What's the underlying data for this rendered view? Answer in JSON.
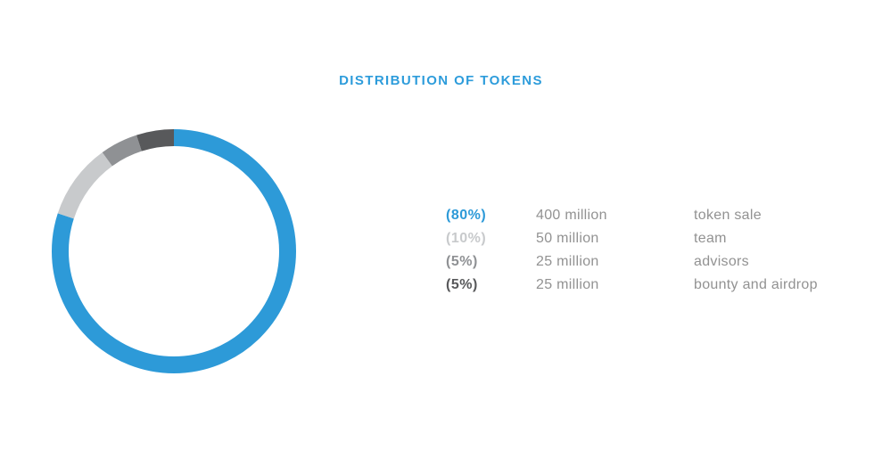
{
  "header": {
    "title": "DISTRIBUTION OF TOKENS",
    "title_color": "#2D9CDB"
  },
  "chart_data": {
    "type": "pie",
    "variant": "donut",
    "title": "DISTRIBUTION OF TOKENS",
    "start_angle_deg": 0,
    "direction": "clockwise",
    "legend_position": "right",
    "background_color": "#ffffff",
    "segments": [
      {
        "label": "token sale",
        "percent": 80,
        "percent_label": "(80%)",
        "amount": "400 million",
        "color": "#2D9AD8"
      },
      {
        "label": "team",
        "percent": 10,
        "percent_label": "(10%)",
        "amount": "50 million",
        "color": "#C8CACC"
      },
      {
        "label": "advisors",
        "percent": 5,
        "percent_label": "(5%)",
        "amount": "25 million",
        "color": "#8F9194"
      },
      {
        "label": "bounty and airdrop",
        "percent": 5,
        "percent_label": "(5%)",
        "amount": "25 million",
        "color": "#58595B"
      }
    ]
  }
}
